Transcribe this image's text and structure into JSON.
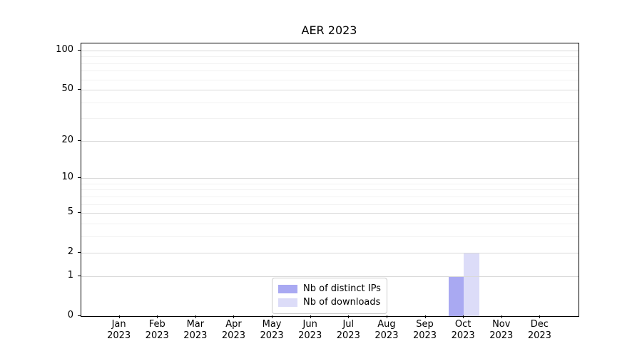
{
  "chart_data": {
    "type": "bar",
    "title": "AER 2023",
    "categories": [
      "Jan",
      "Feb",
      "Mar",
      "Apr",
      "May",
      "Jun",
      "Jul",
      "Aug",
      "Sep",
      "Oct",
      "Nov",
      "Dec"
    ],
    "category_year": "2023",
    "series": [
      {
        "name": "Nb of distinct IPs",
        "color": "#a9a9f2",
        "values": [
          0,
          0,
          0,
          0,
          0,
          0,
          0,
          0,
          0,
          1,
          0,
          0
        ]
      },
      {
        "name": "Nb of downloads",
        "color": "#dcdcf8",
        "values": [
          0,
          0,
          0,
          0,
          0,
          0,
          0,
          0,
          0,
          2,
          0,
          0
        ]
      }
    ],
    "xlabel": "",
    "ylabel": "",
    "y_scale": "log1p",
    "y_max": 100,
    "ylim": [
      0,
      100
    ],
    "y_major_ticks": [
      0,
      1,
      2,
      5,
      10,
      20,
      50,
      100
    ],
    "y_minor_ticks": [
      3,
      4,
      6,
      7,
      8,
      9,
      30,
      40,
      60,
      70,
      80,
      90
    ],
    "grid": "on",
    "legend_position": "lower center",
    "colors": {
      "grid_major": "#d9d9d9",
      "grid_minor": "#f2f2f2",
      "spine": "#000000",
      "background": "#ffffff",
      "legend_border": "#cccccc"
    }
  }
}
